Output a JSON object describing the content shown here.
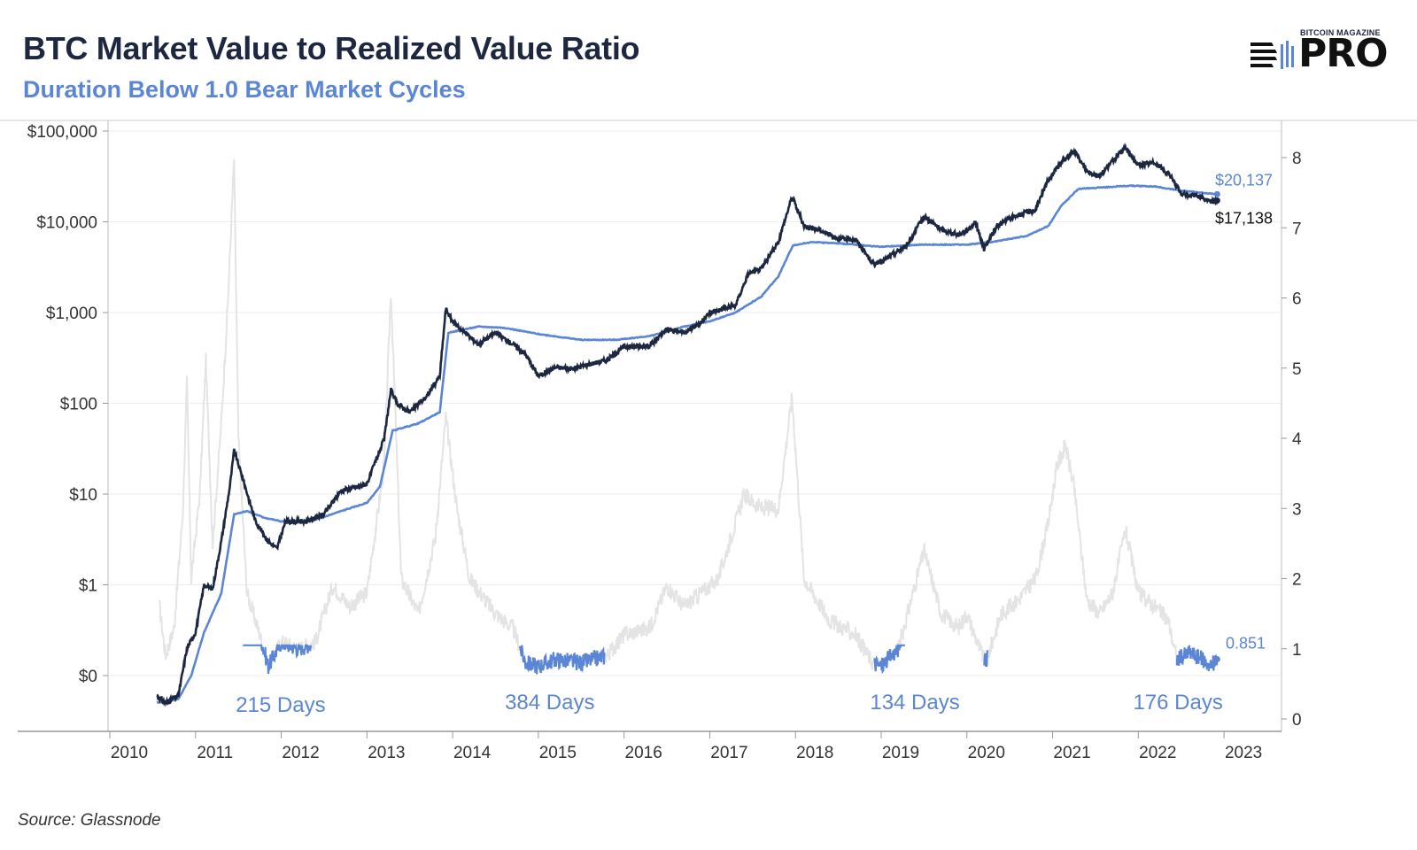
{
  "header": {
    "title": "BTC Market Value to Realized Value Ratio",
    "subtitle": "Duration Below 1.0 Bear Market Cycles"
  },
  "logo": {
    "top_text": "BITCOIN MAGAZINE",
    "main_text": "PRO"
  },
  "footer": {
    "source": "Source: Glassnode"
  },
  "colors": {
    "price": "#1d2740",
    "realized": "#5b86d6",
    "ratio": "#e4e4e4",
    "ratio_below_one": "#5b86d6",
    "grid": "#eeeeee"
  },
  "chart_data": {
    "type": "line",
    "x_ticks": [
      "2010",
      "2011",
      "2012",
      "2013",
      "2014",
      "2015",
      "2016",
      "2017",
      "2018",
      "2019",
      "2020",
      "2021",
      "2022",
      "2023"
    ],
    "y_left_ticks": [
      "$100,000",
      "$10,000",
      "$1,000",
      "$100",
      "$10",
      "$1",
      "$0"
    ],
    "y_left_scale": "log",
    "y_right_ticks": [
      "8",
      "7",
      "6",
      "5",
      "4",
      "3",
      "2",
      "1",
      "0"
    ],
    "y_right_range": [
      0,
      8.3
    ],
    "series": [
      {
        "key": "price",
        "axis": "left",
        "points": [
          [
            2010.55,
            0.06
          ],
          [
            2010.65,
            0.05
          ],
          [
            2010.8,
            0.06
          ],
          [
            2010.9,
            0.2
          ],
          [
            2011.0,
            0.3
          ],
          [
            2011.1,
            1.0
          ],
          [
            2011.2,
            0.9
          ],
          [
            2011.3,
            3.0
          ],
          [
            2011.4,
            12
          ],
          [
            2011.45,
            30
          ],
          [
            2011.55,
            15
          ],
          [
            2011.7,
            5
          ],
          [
            2011.85,
            3
          ],
          [
            2011.95,
            2.5
          ],
          [
            2012.05,
            5
          ],
          [
            2012.3,
            5
          ],
          [
            2012.5,
            6
          ],
          [
            2012.7,
            11
          ],
          [
            2012.9,
            12
          ],
          [
            2013.0,
            13
          ],
          [
            2013.2,
            40
          ],
          [
            2013.28,
            140
          ],
          [
            2013.35,
            100
          ],
          [
            2013.5,
            80
          ],
          [
            2013.7,
            120
          ],
          [
            2013.85,
            200
          ],
          [
            2013.92,
            1100
          ],
          [
            2014.0,
            800
          ],
          [
            2014.1,
            650
          ],
          [
            2014.3,
            450
          ],
          [
            2014.5,
            600
          ],
          [
            2014.7,
            450
          ],
          [
            2014.85,
            350
          ],
          [
            2015.0,
            200
          ],
          [
            2015.2,
            250
          ],
          [
            2015.4,
            240
          ],
          [
            2015.6,
            270
          ],
          [
            2015.8,
            300
          ],
          [
            2016.0,
            420
          ],
          [
            2016.3,
            430
          ],
          [
            2016.5,
            650
          ],
          [
            2016.7,
            610
          ],
          [
            2016.9,
            780
          ],
          [
            2017.0,
            1000
          ],
          [
            2017.3,
            1200
          ],
          [
            2017.45,
            2700
          ],
          [
            2017.6,
            3000
          ],
          [
            2017.8,
            6000
          ],
          [
            2017.96,
            19000
          ],
          [
            2018.1,
            9000
          ],
          [
            2018.3,
            8000
          ],
          [
            2018.5,
            6500
          ],
          [
            2018.7,
            6400
          ],
          [
            2018.9,
            3500
          ],
          [
            2019.0,
            3600
          ],
          [
            2019.3,
            5500
          ],
          [
            2019.5,
            11500
          ],
          [
            2019.7,
            8200
          ],
          [
            2019.9,
            7200
          ],
          [
            2020.0,
            8000
          ],
          [
            2020.1,
            10000
          ],
          [
            2020.2,
            5000
          ],
          [
            2020.35,
            9000
          ],
          [
            2020.55,
            11500
          ],
          [
            2020.8,
            13500
          ],
          [
            2020.95,
            29000
          ],
          [
            2021.1,
            45000
          ],
          [
            2021.25,
            60000
          ],
          [
            2021.4,
            36000
          ],
          [
            2021.55,
            32000
          ],
          [
            2021.7,
            47000
          ],
          [
            2021.85,
            65000
          ],
          [
            2022.0,
            42000
          ],
          [
            2022.2,
            45000
          ],
          [
            2022.4,
            30000
          ],
          [
            2022.5,
            20000
          ],
          [
            2022.7,
            19500
          ],
          [
            2022.85,
            16500
          ],
          [
            2022.92,
            17138
          ]
        ]
      },
      {
        "key": "realized",
        "axis": "left",
        "points": [
          [
            2010.55,
            0.05
          ],
          [
            2010.8,
            0.055
          ],
          [
            2010.95,
            0.1
          ],
          [
            2011.1,
            0.3
          ],
          [
            2011.3,
            0.8
          ],
          [
            2011.45,
            6
          ],
          [
            2011.6,
            6.5
          ],
          [
            2011.8,
            5.5
          ],
          [
            2012.0,
            5
          ],
          [
            2012.4,
            5.2
          ],
          [
            2012.7,
            6.5
          ],
          [
            2013.0,
            8
          ],
          [
            2013.15,
            12
          ],
          [
            2013.3,
            50
          ],
          [
            2013.6,
            60
          ],
          [
            2013.85,
            80
          ],
          [
            2013.95,
            600
          ],
          [
            2014.3,
            700
          ],
          [
            2014.6,
            680
          ],
          [
            2015.0,
            580
          ],
          [
            2015.5,
            500
          ],
          [
            2015.9,
            500
          ],
          [
            2016.3,
            550
          ],
          [
            2016.7,
            700
          ],
          [
            2017.0,
            800
          ],
          [
            2017.3,
            1000
          ],
          [
            2017.6,
            1500
          ],
          [
            2017.8,
            2500
          ],
          [
            2017.97,
            5500
          ],
          [
            2018.2,
            6000
          ],
          [
            2018.6,
            5700
          ],
          [
            2019.0,
            5300
          ],
          [
            2019.5,
            5600
          ],
          [
            2020.0,
            5600
          ],
          [
            2020.3,
            6000
          ],
          [
            2020.7,
            7000
          ],
          [
            2020.95,
            9000
          ],
          [
            2021.1,
            15000
          ],
          [
            2021.3,
            23000
          ],
          [
            2021.6,
            24000
          ],
          [
            2021.9,
            25000
          ],
          [
            2022.2,
            24500
          ],
          [
            2022.5,
            22000
          ],
          [
            2022.92,
            20137
          ]
        ]
      },
      {
        "key": "ratio",
        "axis": "right",
        "points": [
          [
            2010.58,
            1.6
          ],
          [
            2010.65,
            0.9
          ],
          [
            2010.75,
            1.3
          ],
          [
            2010.85,
            2.9
          ],
          [
            2010.9,
            4.8
          ],
          [
            2010.95,
            2.0
          ],
          [
            2011.05,
            3.2
          ],
          [
            2011.12,
            5.1
          ],
          [
            2011.2,
            2.5
          ],
          [
            2011.3,
            4.2
          ],
          [
            2011.38,
            6.0
          ],
          [
            2011.45,
            8.0
          ],
          [
            2011.5,
            4.0
          ],
          [
            2011.6,
            1.8
          ],
          [
            2011.75,
            1.2
          ],
          [
            2011.85,
            0.75
          ],
          [
            2012.0,
            1.1
          ],
          [
            2012.2,
            1.0
          ],
          [
            2012.4,
            1.1
          ],
          [
            2012.6,
            1.9
          ],
          [
            2012.8,
            1.6
          ],
          [
            2013.0,
            1.8
          ],
          [
            2013.2,
            3.6
          ],
          [
            2013.28,
            6.1
          ],
          [
            2013.4,
            2.0
          ],
          [
            2013.6,
            1.5
          ],
          [
            2013.8,
            2.6
          ],
          [
            2013.92,
            4.3
          ],
          [
            2014.05,
            3.0
          ],
          [
            2014.2,
            2.0
          ],
          [
            2014.5,
            1.5
          ],
          [
            2014.7,
            1.3
          ],
          [
            2014.85,
            0.8
          ],
          [
            2015.0,
            0.75
          ],
          [
            2015.2,
            0.85
          ],
          [
            2015.5,
            0.8
          ],
          [
            2015.8,
            0.9
          ],
          [
            2016.0,
            1.2
          ],
          [
            2016.3,
            1.3
          ],
          [
            2016.5,
            1.9
          ],
          [
            2016.7,
            1.6
          ],
          [
            2016.9,
            1.8
          ],
          [
            2017.1,
            2.0
          ],
          [
            2017.4,
            3.2
          ],
          [
            2017.6,
            3.0
          ],
          [
            2017.8,
            3.0
          ],
          [
            2017.96,
            4.6
          ],
          [
            2018.1,
            2.0
          ],
          [
            2018.4,
            1.4
          ],
          [
            2018.7,
            1.2
          ],
          [
            2018.9,
            0.8
          ],
          [
            2019.0,
            0.75
          ],
          [
            2019.2,
            1.0
          ],
          [
            2019.5,
            2.4
          ],
          [
            2019.7,
            1.5
          ],
          [
            2019.9,
            1.3
          ],
          [
            2020.0,
            1.5
          ],
          [
            2020.15,
            1.0
          ],
          [
            2020.22,
            0.8
          ],
          [
            2020.4,
            1.5
          ],
          [
            2020.6,
            1.7
          ],
          [
            2020.8,
            2.0
          ],
          [
            2020.95,
            2.8
          ],
          [
            2021.05,
            3.6
          ],
          [
            2021.15,
            3.9
          ],
          [
            2021.25,
            3.3
          ],
          [
            2021.4,
            1.7
          ],
          [
            2021.55,
            1.5
          ],
          [
            2021.7,
            1.8
          ],
          [
            2021.85,
            2.7
          ],
          [
            2022.0,
            1.8
          ],
          [
            2022.2,
            1.6
          ],
          [
            2022.35,
            1.4
          ],
          [
            2022.45,
            0.85
          ],
          [
            2022.6,
            0.95
          ],
          [
            2022.75,
            0.85
          ],
          [
            2022.85,
            0.75
          ],
          [
            2022.92,
            0.851
          ]
        ]
      }
    ],
    "below_one_segments": [
      [
        2011.55,
        2012.35
      ],
      [
        2014.78,
        2015.78
      ],
      [
        2018.92,
        2019.28
      ],
      [
        2020.2,
        2020.24
      ],
      [
        2022.45,
        2022.92
      ]
    ],
    "annotations": [
      {
        "text": "215 Days",
        "x": 2011.58,
        "y": 0.1
      },
      {
        "text": "384 Days",
        "x": 2014.72,
        "y": 0.14
      },
      {
        "text": "134 Days",
        "x": 2018.98,
        "y": 0.14
      },
      {
        "text": "176 Days",
        "x": 2022.05,
        "y": 0.14
      }
    ],
    "end_labels": [
      {
        "text": "$20,137",
        "series": "realized"
      },
      {
        "text": "$17,138",
        "series": "price"
      },
      {
        "text": "0.851",
        "series": "ratio"
      }
    ]
  }
}
